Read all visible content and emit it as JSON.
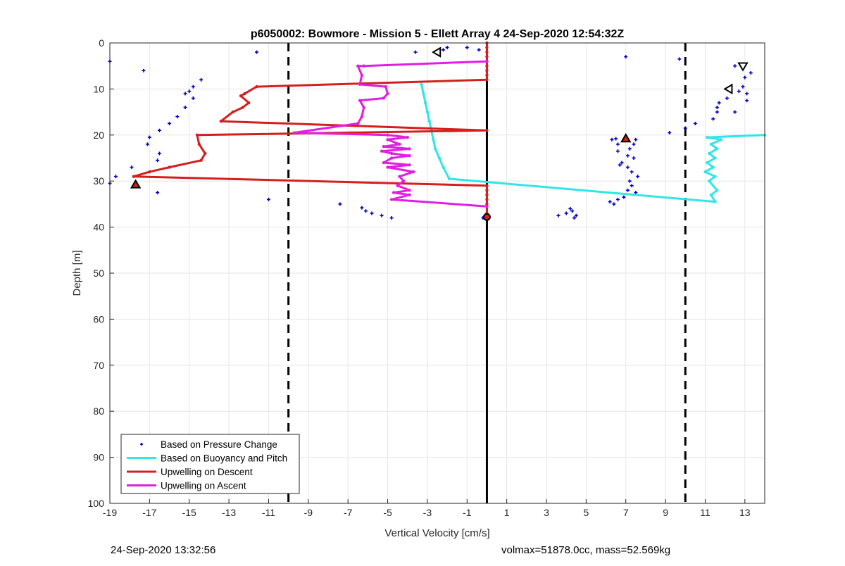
{
  "chart_data": {
    "type": "line",
    "title": "p6050002: Bowmore - Mission 5 - Ellett Array 4 24-Sep-2020 12:54:32Z",
    "xlabel": "Vertical Velocity [cm/s]",
    "ylabel": "Depth [m]",
    "xlim": [
      -19,
      14
    ],
    "ylim": [
      0,
      100
    ],
    "y_reversed": true,
    "grid": true,
    "xticks": [
      -19,
      -17,
      -15,
      -13,
      -11,
      -9,
      -7,
      -5,
      -3,
      -1,
      1,
      3,
      5,
      7,
      9,
      11,
      13
    ],
    "xtick_labels": [
      "-19",
      "-17",
      "-15",
      "-13",
      "-11",
      "-9",
      "-7",
      "-5",
      "-3",
      "-1",
      "1",
      "3",
      "5",
      "7",
      "9",
      "11",
      "13"
    ],
    "yticks": [
      0,
      10,
      20,
      30,
      40,
      50,
      60,
      70,
      80,
      90,
      100
    ],
    "ytick_labels": [
      "0",
      "10",
      "20",
      "30",
      "40",
      "50",
      "60",
      "70",
      "80",
      "90",
      "100"
    ],
    "legend_position": "bottom-left",
    "reference_lines": [
      {
        "x": -10,
        "style": "dashed",
        "color": "#000000"
      },
      {
        "x": 10,
        "style": "dashed",
        "color": "#000000"
      },
      {
        "x": 0,
        "style": "solid",
        "color": "#000000"
      }
    ],
    "series": [
      {
        "name": "Based on Pressure Change",
        "kind": "scatter",
        "color": "#0000cc",
        "points": [
          [
            -19,
            4
          ],
          [
            -17.3,
            6
          ],
          [
            -11.6,
            2
          ],
          [
            -14.4,
            8
          ],
          [
            -14.8,
            9.5
          ],
          [
            -15,
            10.5
          ],
          [
            -15.2,
            11
          ],
          [
            -14.8,
            12
          ],
          [
            -15.2,
            14
          ],
          [
            -15.6,
            16
          ],
          [
            -16,
            17.5
          ],
          [
            -16.5,
            19
          ],
          [
            -17,
            20.5
          ],
          [
            -17.1,
            22
          ],
          [
            -16.5,
            24
          ],
          [
            -16.6,
            25.5
          ],
          [
            -17.9,
            27
          ],
          [
            -18.7,
            29
          ],
          [
            -19,
            30.5
          ],
          [
            -16.6,
            32.5
          ],
          [
            -11,
            34
          ],
          [
            -7.4,
            35
          ],
          [
            -6.3,
            35.8
          ],
          [
            -6.1,
            36.5
          ],
          [
            -5.8,
            37
          ],
          [
            -5.3,
            37.5
          ],
          [
            -4.8,
            38
          ],
          [
            -3.6,
            2
          ],
          [
            -2.2,
            1.5
          ],
          [
            -2,
            1
          ],
          [
            -1,
            1
          ],
          [
            -0.2,
            38
          ],
          [
            -0.4,
            1.5
          ],
          [
            3.6,
            37.5
          ],
          [
            4,
            37
          ],
          [
            4.3,
            36.5
          ],
          [
            4.5,
            37.5
          ],
          [
            4.4,
            38
          ],
          [
            4.2,
            36
          ],
          [
            6.2,
            34.5
          ],
          [
            6.4,
            35
          ],
          [
            6.6,
            34
          ],
          [
            6.9,
            33.5
          ],
          [
            7.1,
            32
          ],
          [
            7.3,
            31
          ],
          [
            7.5,
            32.5
          ],
          [
            7.2,
            30
          ],
          [
            7.6,
            29
          ],
          [
            7.3,
            28
          ],
          [
            7.1,
            27
          ],
          [
            6.7,
            26.5
          ],
          [
            6.8,
            26
          ],
          [
            7.4,
            25
          ],
          [
            7.1,
            24.5
          ],
          [
            6.6,
            23.5
          ],
          [
            7.2,
            23
          ],
          [
            7.4,
            22
          ],
          [
            6.6,
            22
          ],
          [
            6.3,
            21
          ],
          [
            6.5,
            20.8
          ],
          [
            7.5,
            21
          ],
          [
            7,
            3
          ],
          [
            9.7,
            3.5
          ],
          [
            9.2,
            19.5
          ],
          [
            10,
            18.5
          ],
          [
            10.5,
            17.5
          ],
          [
            11.4,
            16.5
          ],
          [
            11.6,
            15
          ],
          [
            11.6,
            14
          ],
          [
            11.7,
            13
          ],
          [
            12.1,
            12
          ],
          [
            12.5,
            15
          ],
          [
            12.7,
            10.5
          ],
          [
            12.9,
            9.5
          ],
          [
            13.3,
            6.5
          ],
          [
            13,
            7.5
          ],
          [
            12.5,
            5
          ],
          [
            13.1,
            11
          ],
          [
            13.1,
            12.5
          ]
        ]
      },
      {
        "name": "Based on Buoyancy and Pitch",
        "kind": "line",
        "color": "#30e6e6",
        "points": [
          [
            -3.3,
            9
          ],
          [
            -3.2,
            11
          ],
          [
            -3.1,
            13
          ],
          [
            -3,
            15
          ],
          [
            -2.9,
            17
          ],
          [
            -2.8,
            19
          ],
          [
            -2.7,
            21
          ],
          [
            -2.6,
            23
          ],
          [
            -2.4,
            25
          ],
          [
            -2.2,
            27
          ],
          [
            -1.9,
            29.5
          ],
          [
            11.5,
            34.5
          ],
          [
            11.3,
            33
          ],
          [
            11.6,
            32
          ],
          [
            11.2,
            30
          ],
          [
            11.5,
            29
          ],
          [
            11,
            28
          ],
          [
            11.4,
            27
          ],
          [
            11.1,
            26
          ],
          [
            11.5,
            25
          ],
          [
            11.2,
            24
          ],
          [
            11.6,
            23
          ],
          [
            11.3,
            22
          ],
          [
            11.8,
            21
          ],
          [
            11.1,
            20.5
          ],
          [
            14,
            20
          ]
        ]
      },
      {
        "name": "Upwelling on Descent",
        "kind": "line",
        "color": "#d41f1f",
        "points": [
          [
            0,
            0
          ],
          [
            0,
            1
          ],
          [
            0,
            2
          ],
          [
            0,
            3
          ],
          [
            0,
            4
          ],
          [
            0,
            5
          ],
          [
            0,
            6
          ],
          [
            0,
            7
          ],
          [
            0,
            8
          ],
          [
            -11.6,
            9.5
          ],
          [
            -12.2,
            11
          ],
          [
            -12.4,
            11.5
          ],
          [
            -12,
            13
          ],
          [
            -12.3,
            14
          ],
          [
            -12.8,
            15
          ],
          [
            -13.4,
            17
          ],
          [
            0,
            19
          ],
          [
            -14.6,
            20
          ],
          [
            -14.5,
            22
          ],
          [
            -14.2,
            24
          ],
          [
            -14.4,
            25.5
          ],
          [
            -16,
            27
          ],
          [
            -17,
            28
          ],
          [
            -17.8,
            29
          ],
          [
            0,
            31
          ],
          [
            0,
            32
          ],
          [
            0,
            33
          ],
          [
            0,
            34
          ],
          [
            0,
            35
          ],
          [
            0,
            37
          ],
          [
            0,
            38
          ]
        ]
      },
      {
        "name": "Upwelling on Ascent",
        "kind": "line",
        "color": "#e21ee2",
        "points": [
          [
            0,
            4
          ],
          [
            -6.2,
            5
          ],
          [
            -6.5,
            5
          ],
          [
            -6.3,
            7
          ],
          [
            -6.4,
            9
          ],
          [
            -5.1,
            9.5
          ],
          [
            -5,
            11
          ],
          [
            -5.2,
            12
          ],
          [
            -6.4,
            12.5
          ],
          [
            -6.2,
            14
          ],
          [
            -6.3,
            16
          ],
          [
            -6.5,
            17.5
          ],
          [
            -9.7,
            19.5
          ],
          [
            -5,
            20
          ],
          [
            -4,
            20.5
          ],
          [
            -5,
            21
          ],
          [
            -4.4,
            22
          ],
          [
            -5.2,
            22.5
          ],
          [
            -3.9,
            23
          ],
          [
            -5.3,
            23.5
          ],
          [
            -4.8,
            24
          ],
          [
            -3.9,
            24.5
          ],
          [
            -4.8,
            25
          ],
          [
            -5.2,
            26
          ],
          [
            -3.9,
            26.5
          ],
          [
            -5,
            27
          ],
          [
            -3.7,
            28
          ],
          [
            -4.4,
            29
          ],
          [
            -4.2,
            30
          ],
          [
            -4.5,
            31
          ],
          [
            -3.9,
            32
          ],
          [
            -4.7,
            32.5
          ],
          [
            -3.9,
            33
          ],
          [
            -4.8,
            34
          ],
          [
            0,
            35.5
          ]
        ]
      }
    ],
    "markers": [
      {
        "shape": "triangle-left",
        "x": -2.5,
        "y": 2,
        "fill": "#ffffff"
      },
      {
        "shape": "triangle-down",
        "x": 12.9,
        "y": 5,
        "fill": "#ffffff"
      },
      {
        "shape": "triangle-left",
        "x": 12.2,
        "y": 10,
        "fill": "#ffffff"
      },
      {
        "shape": "triangle-up",
        "x": 7,
        "y": 20.8,
        "fill": "#d41f1f"
      },
      {
        "shape": "triangle-up",
        "x": -17.7,
        "y": 30.8,
        "fill": "#d41f1f"
      },
      {
        "shape": "circle",
        "x": 0,
        "y": 37.8,
        "fill": "#d41f1f"
      }
    ]
  },
  "footer": {
    "left": "24-Sep-2020 13:32:56",
    "right": "volmax=51878.0cc, mass=52.569kg"
  }
}
